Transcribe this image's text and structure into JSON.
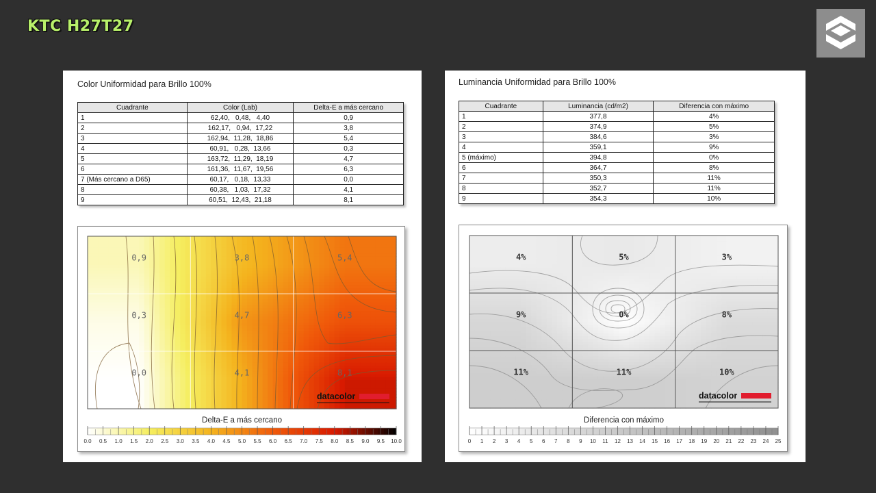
{
  "header": {
    "title": "KTC H27T27"
  },
  "left": {
    "title": "Color Uniformidad para Brillo 100%",
    "table": {
      "headers": [
        "Cuadrante",
        "Color (Lab)",
        "Delta-E a más cercano"
      ],
      "rows": [
        [
          "1",
          "62,40,   0,48,   4,40",
          "0,9"
        ],
        [
          "2",
          "162,17,   0,94,  17,22",
          "3,8"
        ],
        [
          "3",
          "162,94,  11,28,  18,86",
          "5,4"
        ],
        [
          "4",
          "60,91,   0,28,  13,66",
          "0,3"
        ],
        [
          "5",
          "163,72,  11,29,  18,19",
          "4,7"
        ],
        [
          "6",
          "161,36,  11,67,  19,56",
          "6,3"
        ],
        [
          "7 (Más cercano a D65)",
          "60,17,   0,18,  13,33",
          "0,0"
        ],
        [
          "8",
          "60,38,   1,03,  17,32",
          "4,1"
        ],
        [
          "9",
          "60,51,  12,43,  21,18",
          "8,1"
        ]
      ]
    }
  },
  "right": {
    "title": "Luminancia Uniformidad para Brillo 100%",
    "table": {
      "headers": [
        "Cuadrante",
        "Luminancia (cd/m2)",
        "Diferencia con máximo"
      ],
      "rows": [
        [
          "1",
          "377,8",
          "4%"
        ],
        [
          "2",
          "374,9",
          "5%"
        ],
        [
          "3",
          "384,6",
          "3%"
        ],
        [
          "4",
          "359,1",
          "9%"
        ],
        [
          "5 (máximo)",
          "394,8",
          "0%"
        ],
        [
          "6",
          "364,7",
          "8%"
        ],
        [
          "7",
          "350,3",
          "11%"
        ],
        [
          "8",
          "352,7",
          "11%"
        ],
        [
          "9",
          "354,3",
          "10%"
        ]
      ]
    }
  },
  "watermark": "datacolor",
  "chart_data": [
    {
      "type": "heatmap",
      "grid": "3x3",
      "labels": [
        "0,9",
        "3,8",
        "5,4",
        "0,3",
        "4,7",
        "6,3",
        "0,0",
        "4,1",
        "8,1"
      ],
      "values": [
        [
          0.9,
          3.8,
          5.4
        ],
        [
          0.3,
          4.7,
          6.3
        ],
        [
          0.0,
          4.1,
          8.1
        ]
      ],
      "xlabel": "Delta-E a más cercano",
      "colorbar_ticks": [
        "0.0",
        "0.5",
        "1.0",
        "1.5",
        "2.0",
        "2.5",
        "3.0",
        "3.5",
        "4.0",
        "4.5",
        "5.0",
        "5.5",
        "6.0",
        "6.5",
        "7.0",
        "7.5",
        "8.0",
        "8.5",
        "9.0",
        "9.5",
        "10.0"
      ],
      "range": [
        0,
        10
      ],
      "colormap": [
        "#ffffff",
        "#f5ee60",
        "#f4b41e",
        "#f05a0a",
        "#d81a00",
        "#000000"
      ]
    },
    {
      "type": "heatmap",
      "grid": "3x3",
      "labels": [
        "4%",
        "5%",
        "3%",
        "9%",
        "0%",
        "8%",
        "11%",
        "11%",
        "10%"
      ],
      "values": [
        [
          4,
          5,
          3
        ],
        [
          9,
          0,
          8
        ],
        [
          11,
          11,
          10
        ]
      ],
      "xlabel": "Diferencia con máximo",
      "colorbar_ticks": [
        "0",
        "1",
        "2",
        "3",
        "4",
        "5",
        "6",
        "7",
        "8",
        "9",
        "10",
        "11",
        "12",
        "13",
        "14",
        "15",
        "16",
        "17",
        "18",
        "19",
        "20",
        "21",
        "22",
        "23",
        "24",
        "25"
      ],
      "range": [
        0,
        25
      ],
      "colormap": [
        "#ffffff",
        "#8f8f8f"
      ]
    }
  ]
}
